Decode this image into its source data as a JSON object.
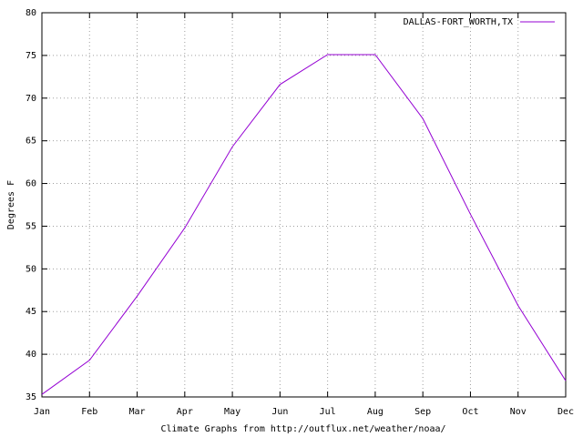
{
  "chart_data": {
    "type": "line",
    "xlabel": "Climate Graphs from http://outflux.net/weather/noaa/",
    "ylabel": "Degrees F",
    "categories": [
      "Jan",
      "Feb",
      "Mar",
      "Apr",
      "May",
      "Jun",
      "Jul",
      "Aug",
      "Sep",
      "Oct",
      "Nov",
      "Dec"
    ],
    "series": [
      {
        "name": "DALLAS-FORT_WORTH,TX",
        "color": "#9400d3",
        "values": [
          35.3,
          39.3,
          46.8,
          54.8,
          64.3,
          71.6,
          75.1,
          75.1,
          67.6,
          56.4,
          45.7,
          36.9
        ]
      }
    ],
    "ylim": [
      35,
      80
    ],
    "yticks": [
      35,
      40,
      45,
      50,
      55,
      60,
      65,
      70,
      75,
      80
    ],
    "grid": true,
    "legend": "top-right"
  }
}
